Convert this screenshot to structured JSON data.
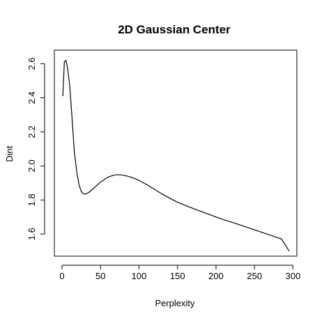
{
  "chart_data": {
    "type": "line",
    "title": "2D Gaussian Center",
    "xlabel": "Perplexity",
    "ylabel": "Dint",
    "xlim": [
      -10,
      305
    ],
    "ylim": [
      1.47,
      2.68
    ],
    "x_ticks": [
      0,
      50,
      100,
      150,
      200,
      250,
      300
    ],
    "x_tick_labels": [
      "0",
      "50",
      "100",
      "150",
      "200",
      "250",
      "300"
    ],
    "y_ticks": [
      1.6,
      1.8,
      2.0,
      2.2,
      2.4,
      2.6
    ],
    "y_tick_labels": [
      "1.6",
      "1.8",
      "2.0",
      "2.2",
      "2.4",
      "2.6"
    ],
    "grid": false,
    "legend": "none",
    "series": [
      {
        "x": [
          1,
          3,
          5,
          7,
          10,
          13,
          16,
          19,
          22,
          25,
          28,
          31,
          35,
          40,
          45,
          50,
          55,
          60,
          65,
          70,
          75,
          80,
          85,
          90,
          95,
          100,
          110,
          120,
          130,
          140,
          150,
          160,
          175,
          190,
          200,
          210,
          225,
          240,
          255,
          270,
          285,
          295
        ],
        "y": [
          2.41,
          2.61,
          2.62,
          2.58,
          2.47,
          2.28,
          2.08,
          1.97,
          1.89,
          1.85,
          1.835,
          1.835,
          1.845,
          1.865,
          1.885,
          1.905,
          1.92,
          1.935,
          1.943,
          1.948,
          1.948,
          1.945,
          1.94,
          1.933,
          1.925,
          1.915,
          1.89,
          1.863,
          1.835,
          1.81,
          1.787,
          1.768,
          1.742,
          1.717,
          1.7,
          1.684,
          1.663,
          1.64,
          1.617,
          1.594,
          1.571,
          1.5
        ]
      }
    ]
  }
}
